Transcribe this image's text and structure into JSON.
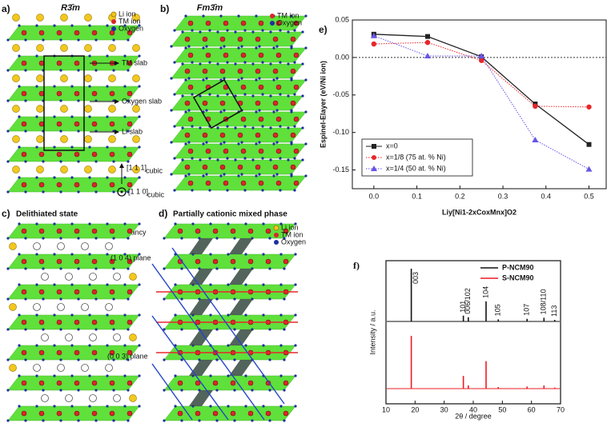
{
  "panels": {
    "a": {
      "label": "a)",
      "title": "R3̄m",
      "legend": [
        "Li ion",
        "TM ion",
        "Oxygen"
      ],
      "annotations": [
        "TM slab",
        "Oxygen slab",
        "Li slab"
      ],
      "directions": [
        "[1 1 1]",
        "[1 1 0]"
      ],
      "direction_subscript": "cubic"
    },
    "b": {
      "label": "b)",
      "title": "Fm3̄m",
      "legend": [
        "TM ion",
        "Oxygen"
      ]
    },
    "c": {
      "label": "c)",
      "title": "Delithiated state",
      "legend": [
        "Li vacancy"
      ]
    },
    "d": {
      "label": "d)",
      "title": "Partially cationic mixed phase",
      "legend": [
        "Li ion",
        "TM ion",
        "Oxygen"
      ],
      "annotations": [
        "(1 0 4) plane",
        "(0 0 3) plane"
      ]
    }
  },
  "chart_data": [
    {
      "type": "line",
      "label": "e)",
      "x_label": "Liy[Ni1-2xCoxMnx]O2",
      "y_label": "Espinel-Elayer (eV/Ni ion)",
      "x": [
        0,
        0.125,
        0.25,
        0.375,
        0.5
      ],
      "series": [
        {
          "name": "x=0",
          "color": "#222222",
          "marker": "square",
          "line_style": "solid",
          "values": [
            0.031,
            0.028,
            0.001,
            -0.062,
            -0.116
          ]
        },
        {
          "name": "x=1/8 (75 at. % Ni)",
          "color": "#e8262a",
          "marker": "circle",
          "line_style": "dotted",
          "values": [
            0.018,
            0.02,
            -0.004,
            -0.065,
            -0.066
          ]
        },
        {
          "name": "x=1/4 (50 at. % Ni)",
          "color": "#6655e8",
          "marker": "triangle",
          "line_style": "dotted",
          "values": [
            0.029,
            0.002,
            0.002,
            -0.11,
            -0.149
          ]
        }
      ],
      "xlim": [
        -0.05,
        0.54
      ],
      "xticks": [
        {
          "value": 0,
          "label": "0.0"
        },
        {
          "value": 0.1,
          "label": "0.1"
        },
        {
          "value": 0.2,
          "label": "0.2"
        },
        {
          "value": 0.3,
          "label": "0.3"
        },
        {
          "value": 0.4,
          "label": "0.4"
        },
        {
          "value": 0.5,
          "label": "0.5"
        }
      ],
      "ylim": [
        -0.175,
        0.05
      ],
      "yticks": [
        {
          "value": 0.05,
          "label": "0.05"
        },
        {
          "value": 0,
          "label": "0.00"
        },
        {
          "value": -0.05,
          "label": "-0.05"
        },
        {
          "value": -0.1,
          "label": "-0.10"
        },
        {
          "value": -0.15,
          "label": "-0.15"
        }
      ],
      "reference_line": 0,
      "legend": "lower left"
    },
    {
      "type": "spectrum",
      "label": "f)",
      "x_label": "2θ / degree",
      "y_label": "Intensity / a.u.",
      "x": [
        18.7,
        36.6,
        38.3,
        44.4,
        48.6,
        58.5,
        64.3,
        68.0
      ],
      "annotations": [
        "003",
        "101",
        "006/102",
        "104",
        "105",
        "107",
        "108/110",
        "113"
      ],
      "series": [
        {
          "name": "P-NCM90",
          "color": "#111111",
          "values": [
            1.0,
            0.11,
            0.08,
            0.38,
            0.04,
            0.05,
            0.07,
            0.03
          ]
        },
        {
          "name": "S-NCM90",
          "color": "#ee1c24",
          "values": [
            1.0,
            0.24,
            0.06,
            0.52,
            0.03,
            0.04,
            0.06,
            0.02
          ]
        }
      ],
      "xlim": [
        10,
        70
      ],
      "xticks": [
        10,
        20,
        30,
        40,
        50,
        60,
        70
      ],
      "legend": "upper right"
    }
  ]
}
